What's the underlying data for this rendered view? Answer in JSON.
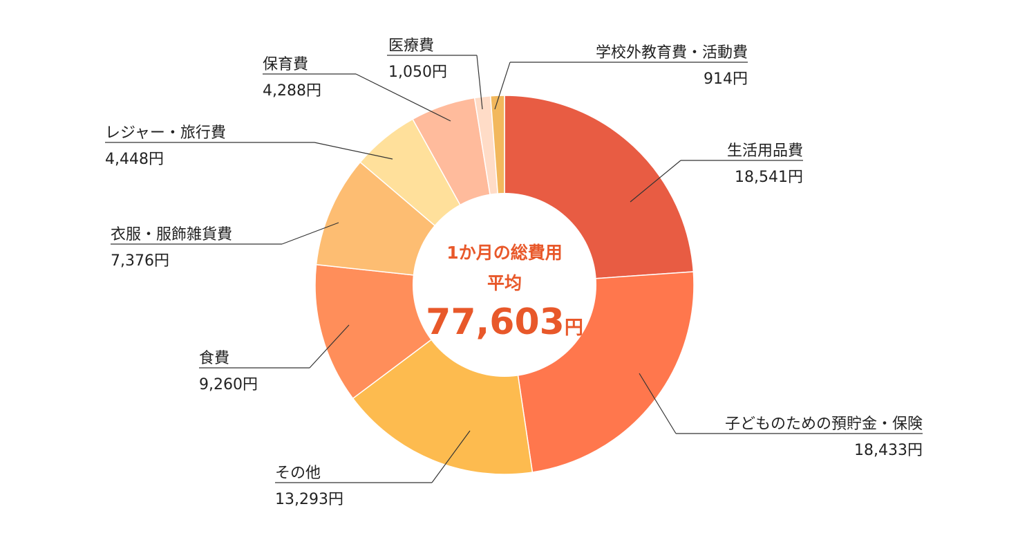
{
  "chart_data": {
    "type": "pie",
    "donut": true,
    "center_text": {
      "line1": "1か月の総費用",
      "line2": "平均",
      "total": "77,603",
      "unit": "円",
      "color": "#E8582A"
    },
    "unit": "円",
    "slices": [
      {
        "label": "生活用品費",
        "value": 18541,
        "value_text": "18,541円",
        "color": "#E85C43"
      },
      {
        "label": "子どものための預貯金・保険",
        "value": 18433,
        "value_text": "18,433円",
        "color": "#FF774D"
      },
      {
        "label": "その他",
        "value": 13293,
        "value_text": "13,293円",
        "color": "#FDBB4F"
      },
      {
        "label": "食費",
        "value": 9260,
        "value_text": "9,260円",
        "color": "#FF8E5A"
      },
      {
        "label": "衣服・服飾雑貨費",
        "value": 7376,
        "value_text": "7,376円",
        "color": "#FDBD72"
      },
      {
        "label": "レジャー・旅行費",
        "value": 4448,
        "value_text": "4,448円",
        "color": "#FFE09B"
      },
      {
        "label": "保育費",
        "value": 4288,
        "value_text": "4,288円",
        "color": "#FFBB9C"
      },
      {
        "label": "医療費",
        "value": 1050,
        "value_text": "1,050円",
        "color": "#FFDCC7"
      },
      {
        "label": "学校外教育費・活動費",
        "value": 914,
        "value_text": "914円",
        "color": "#F2B85D"
      }
    ]
  }
}
